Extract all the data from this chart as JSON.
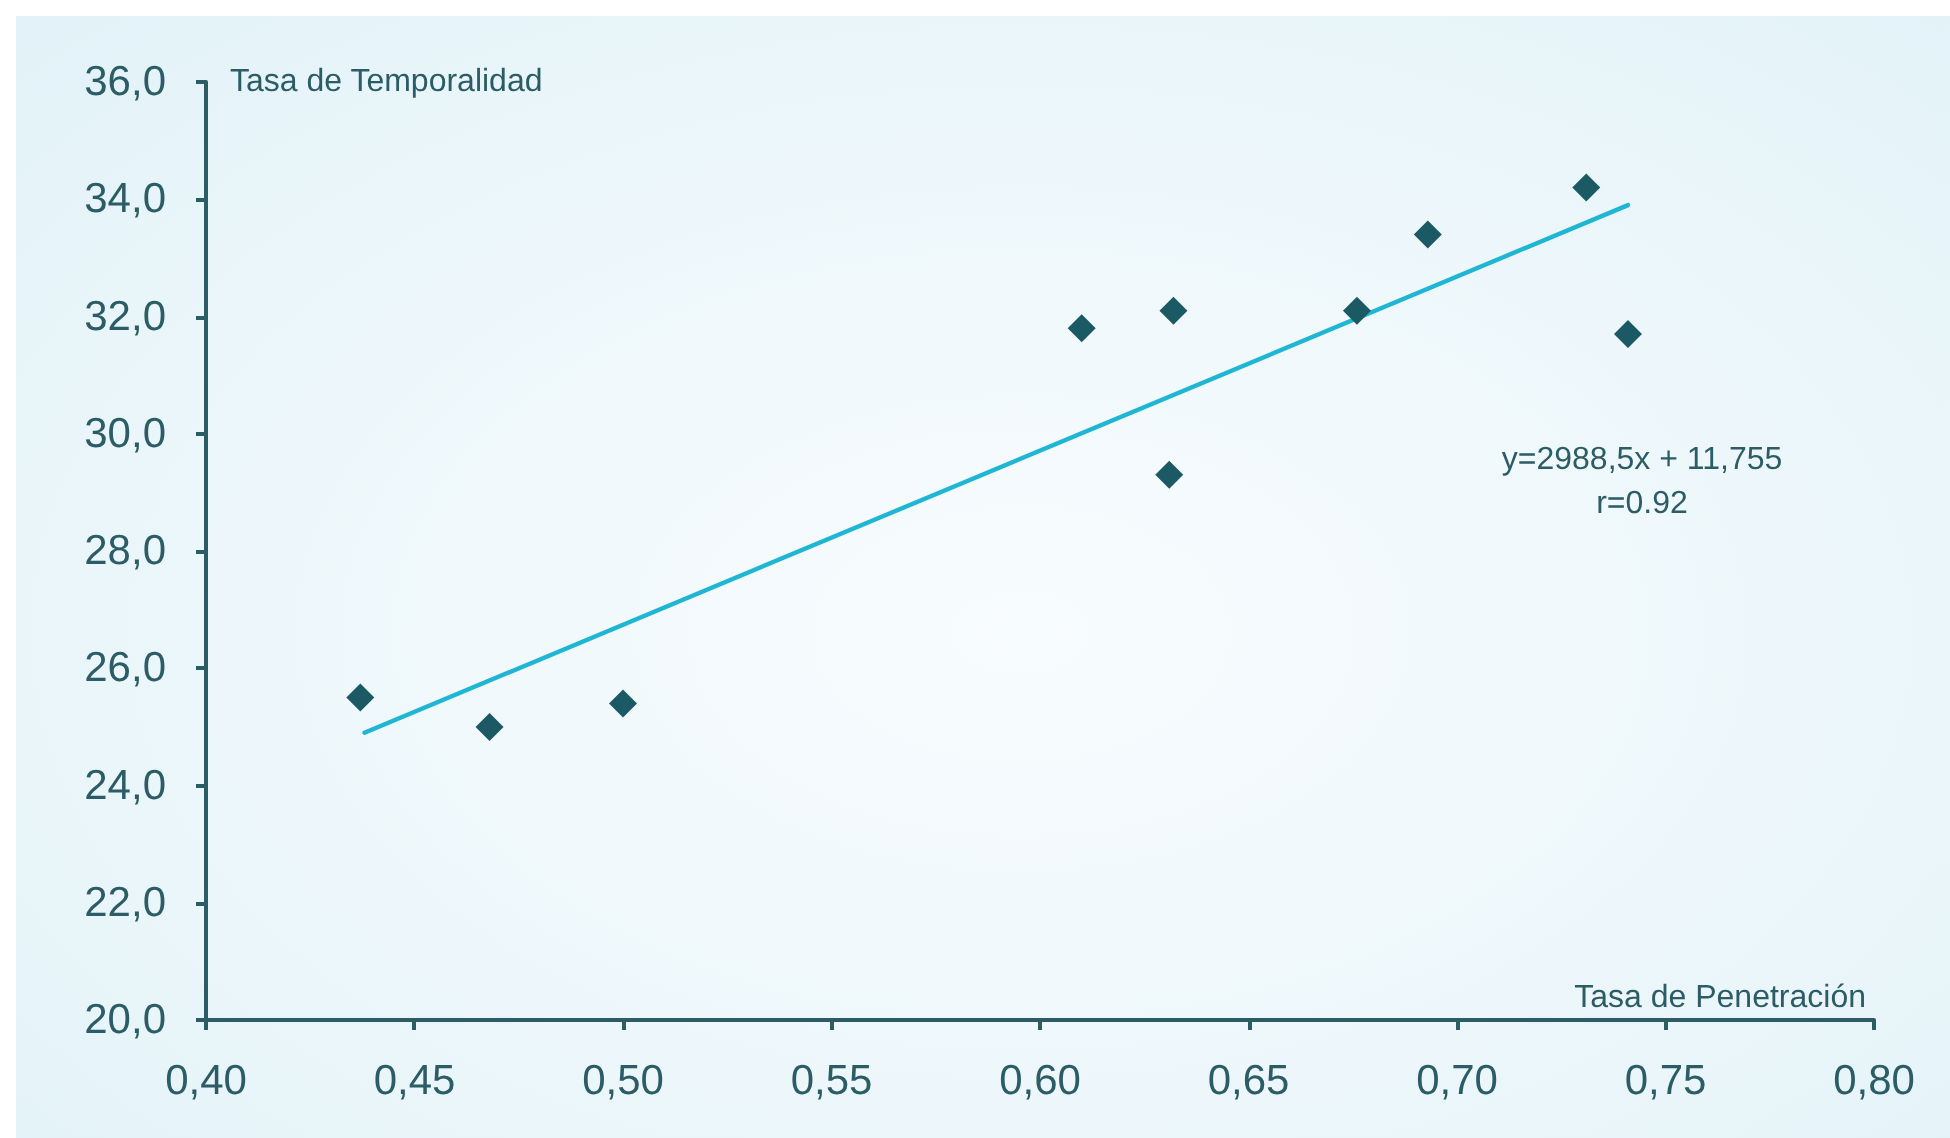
{
  "chart_data": {
    "type": "scatter",
    "xlabel": "Tasa de Penetración",
    "ylabel": "Tasa de Temporalidad",
    "xlim": [
      0.4,
      0.8
    ],
    "xticks": [
      {
        "value": 0.4,
        "label": "0,40"
      },
      {
        "value": 0.45,
        "label": "0,45"
      },
      {
        "value": 0.5,
        "label": "0,50"
      },
      {
        "value": 0.55,
        "label": "0,55"
      },
      {
        "value": 0.6,
        "label": "0,60"
      },
      {
        "value": 0.65,
        "label": "0,65"
      },
      {
        "value": 0.7,
        "label": "0,70"
      },
      {
        "value": 0.75,
        "label": "0,75"
      },
      {
        "value": 0.8,
        "label": "0,80"
      }
    ],
    "ylim": [
      20,
      36
    ],
    "yticks": [
      {
        "value": 20,
        "label": "20,0"
      },
      {
        "value": 22,
        "label": "22,0"
      },
      {
        "value": 24,
        "label": "24,0"
      },
      {
        "value": 26,
        "label": "26,0"
      },
      {
        "value": 28,
        "label": "28,0"
      },
      {
        "value": 30,
        "label": "30,0"
      },
      {
        "value": 32,
        "label": "32,0"
      },
      {
        "value": 34,
        "label": "34,0"
      },
      {
        "value": 36,
        "label": "36,0"
      }
    ],
    "marker": "diamond",
    "series": [
      {
        "type": "scatter",
        "color": "#1b5a64",
        "x": [
          0.437,
          0.468,
          0.5,
          0.61,
          0.632,
          0.631,
          0.676,
          0.693,
          0.731,
          0.741
        ],
        "values": [
          25.5,
          25.0,
          25.4,
          31.8,
          32.1,
          29.3,
          32.1,
          33.4,
          34.2,
          31.7
        ]
      },
      {
        "type": "line",
        "color": "#1fb6d4",
        "marker": "none",
        "line_style": "solid",
        "x": [
          0.438,
          0.741
        ],
        "values": [
          24.9,
          33.9
        ]
      }
    ],
    "annotations": [
      "y=2988,5x + 11,755",
      "r=0.92"
    ]
  }
}
